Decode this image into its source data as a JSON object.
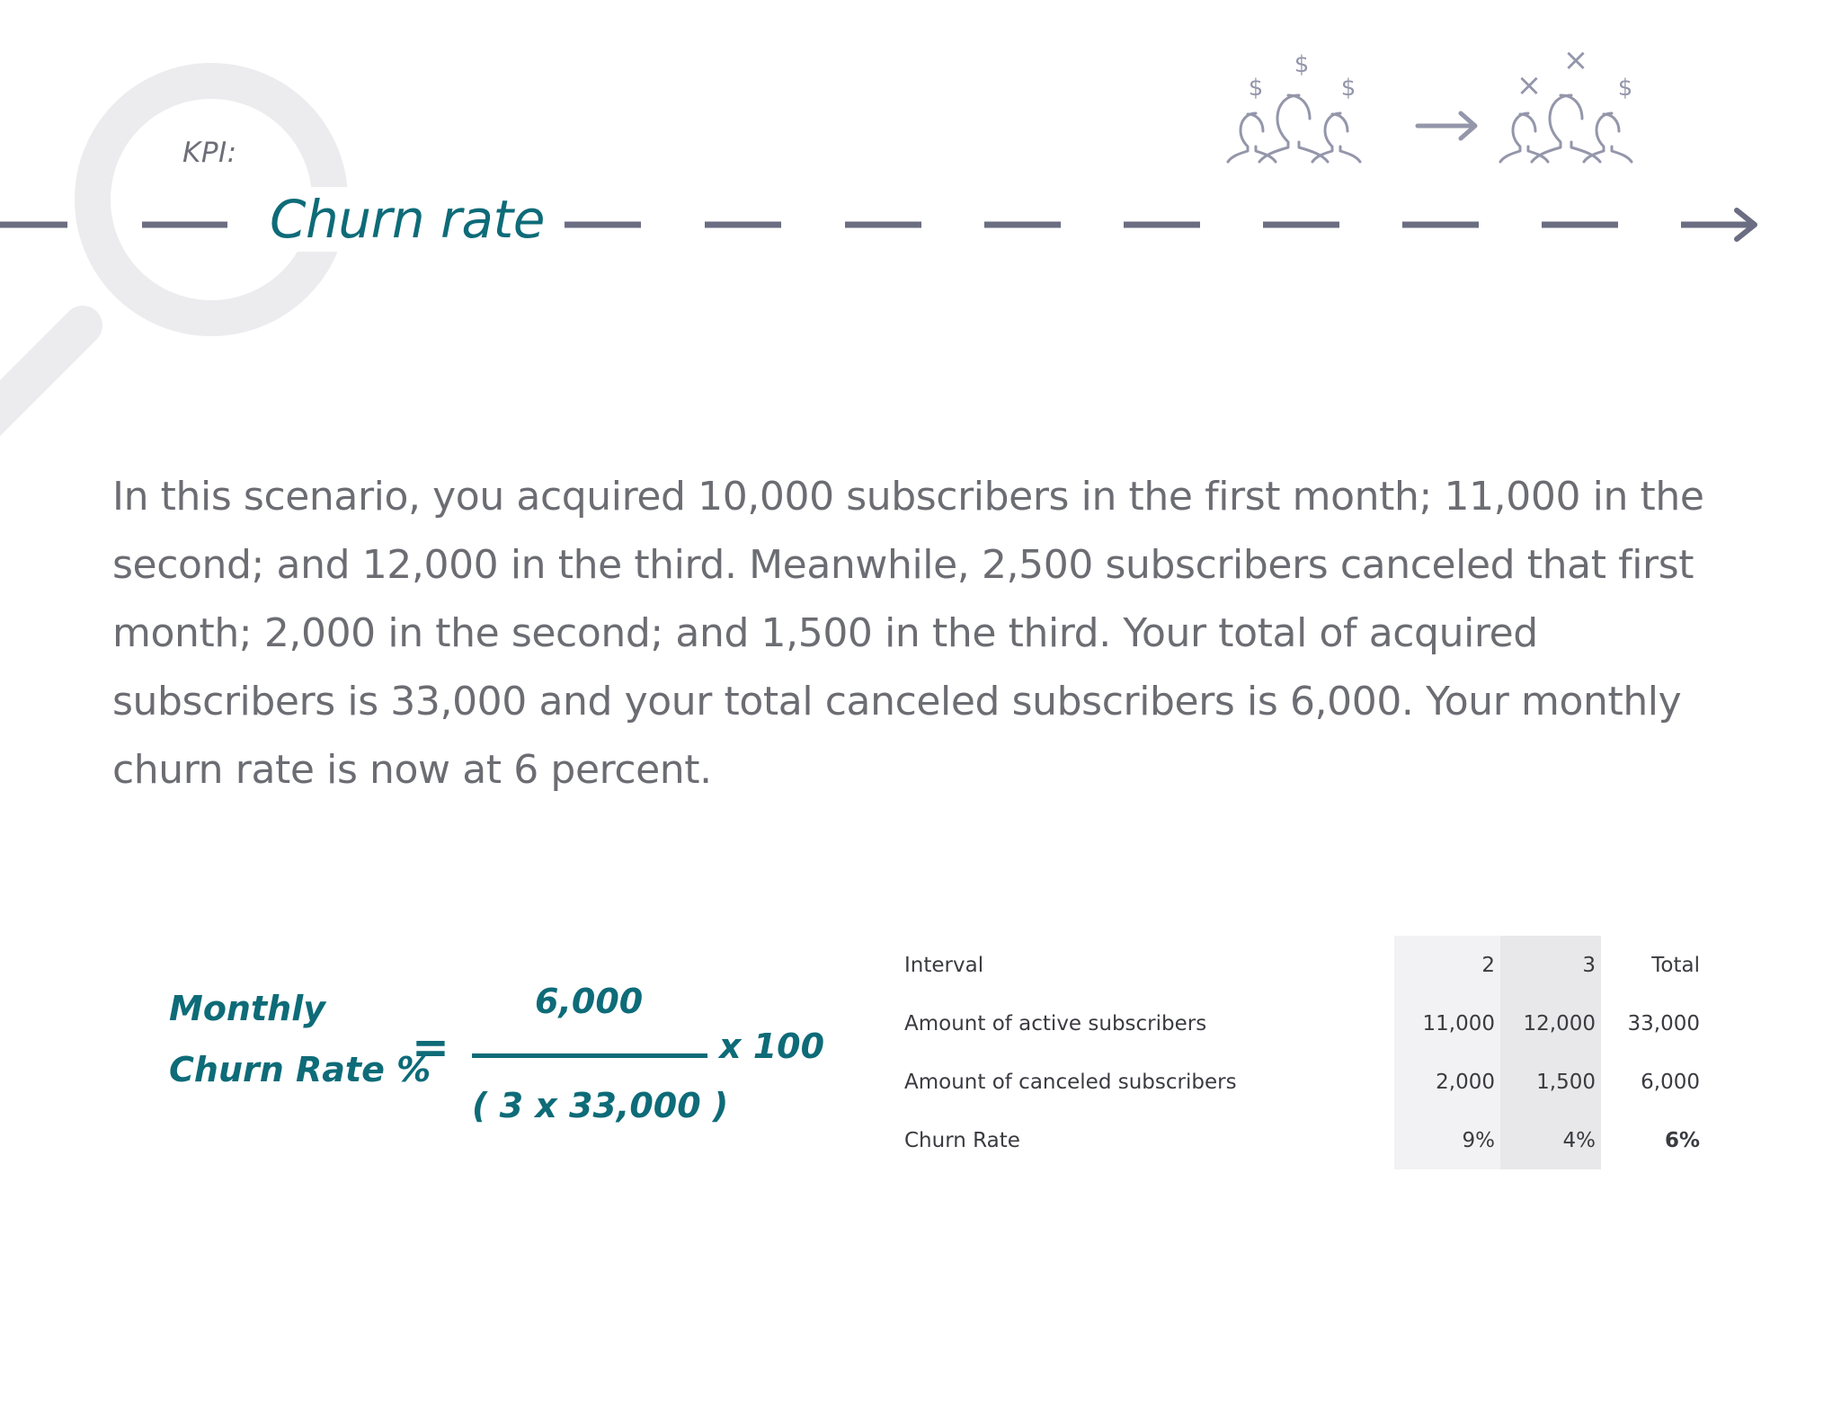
{
  "header": {
    "kpi_label": "KPI:",
    "title": "Churn rate"
  },
  "illustration": {
    "icons": [
      "dollar-icon",
      "group-icon",
      "arrow-right-icon",
      "x-icon"
    ],
    "before_symbols": [
      "$",
      "$",
      "$"
    ],
    "after_symbols": [
      "×",
      "×",
      "$"
    ]
  },
  "body": {
    "paragraph": "In this scenario, you acquired 10,000 subscribers in the first month; 11,000 in the second; and 12,000 in the third. Meanwhile, 2,500 subscribers canceled that first month; 2,000 in the second; and 1,500 in the third. Your total of acquired subscribers is 33,000 and your total canceled subscribers is 6,000. Your monthly churn rate is now at 6 percent."
  },
  "formula": {
    "label_line1": "Monthly",
    "label_line2": "Churn Rate %",
    "equals": "=",
    "numerator": "6,000",
    "denominator": "( 3 x 33,000 )",
    "multiplier": "x 100"
  },
  "table": {
    "rows": [
      {
        "label": "Interval",
        "c1": "2",
        "c2": "3",
        "total": "Total"
      },
      {
        "label": "Amount of active subscribers",
        "c1": "11,000",
        "c2": "12,000",
        "total": "33,000"
      },
      {
        "label": "Amount of canceled subscribers",
        "c1": "2,000",
        "c2": "1,500",
        "total": "6,000"
      },
      {
        "label": "Churn Rate",
        "c1": "9%",
        "c2": "4%",
        "total": "6%"
      }
    ]
  },
  "colors": {
    "accent_teal": "#0e6b78",
    "dash_gray": "#6b6d82",
    "text_gray": "#6c6d73",
    "magnifier_gray": "#ececef",
    "icon_gray": "#9496aa"
  }
}
